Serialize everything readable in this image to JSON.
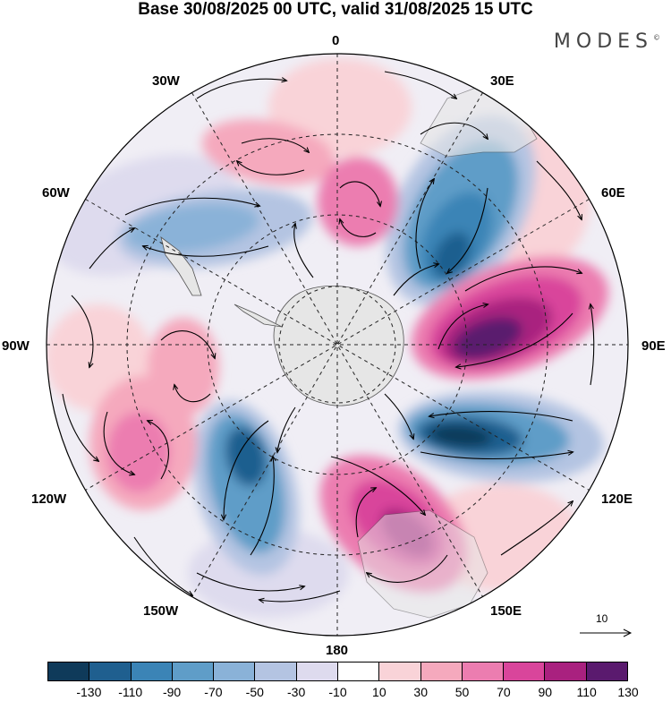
{
  "title": "Base 30/08/2025 00 UTC, valid 31/08/2025 15 UTC",
  "brand": "MODES",
  "brand_mark": "©",
  "longitude_labels": {
    "lon_0": "0",
    "lon_30e": "30E",
    "lon_60e": "60E",
    "lon_90e": "90E",
    "lon_120e": "120E",
    "lon_150e": "150E",
    "lon_180": "180",
    "lon_150w": "150W",
    "lon_120w": "120W",
    "lon_90w": "90W",
    "lon_60w": "60W",
    "lon_30w": "30W"
  },
  "vector_scale": {
    "label": "10"
  },
  "colorbar": {
    "colors": [
      "#0f3a5a",
      "#1f5f8f",
      "#3b84b6",
      "#5f9dc8",
      "#8ab2d8",
      "#b4c4e2",
      "#dedbee",
      "#ffffff",
      "#f9d3d8",
      "#f5a9bd",
      "#ec7db0",
      "#d9459b",
      "#a9217f",
      "#5a1a6e"
    ],
    "ticks": [
      "-130",
      "-110",
      "-90",
      "-70",
      "-50",
      "-30",
      "-10",
      "10",
      "30",
      "50",
      "70",
      "90",
      "110",
      "130"
    ]
  },
  "colors": {
    "land": "#e6e6e6",
    "graticule": "#222222"
  }
}
